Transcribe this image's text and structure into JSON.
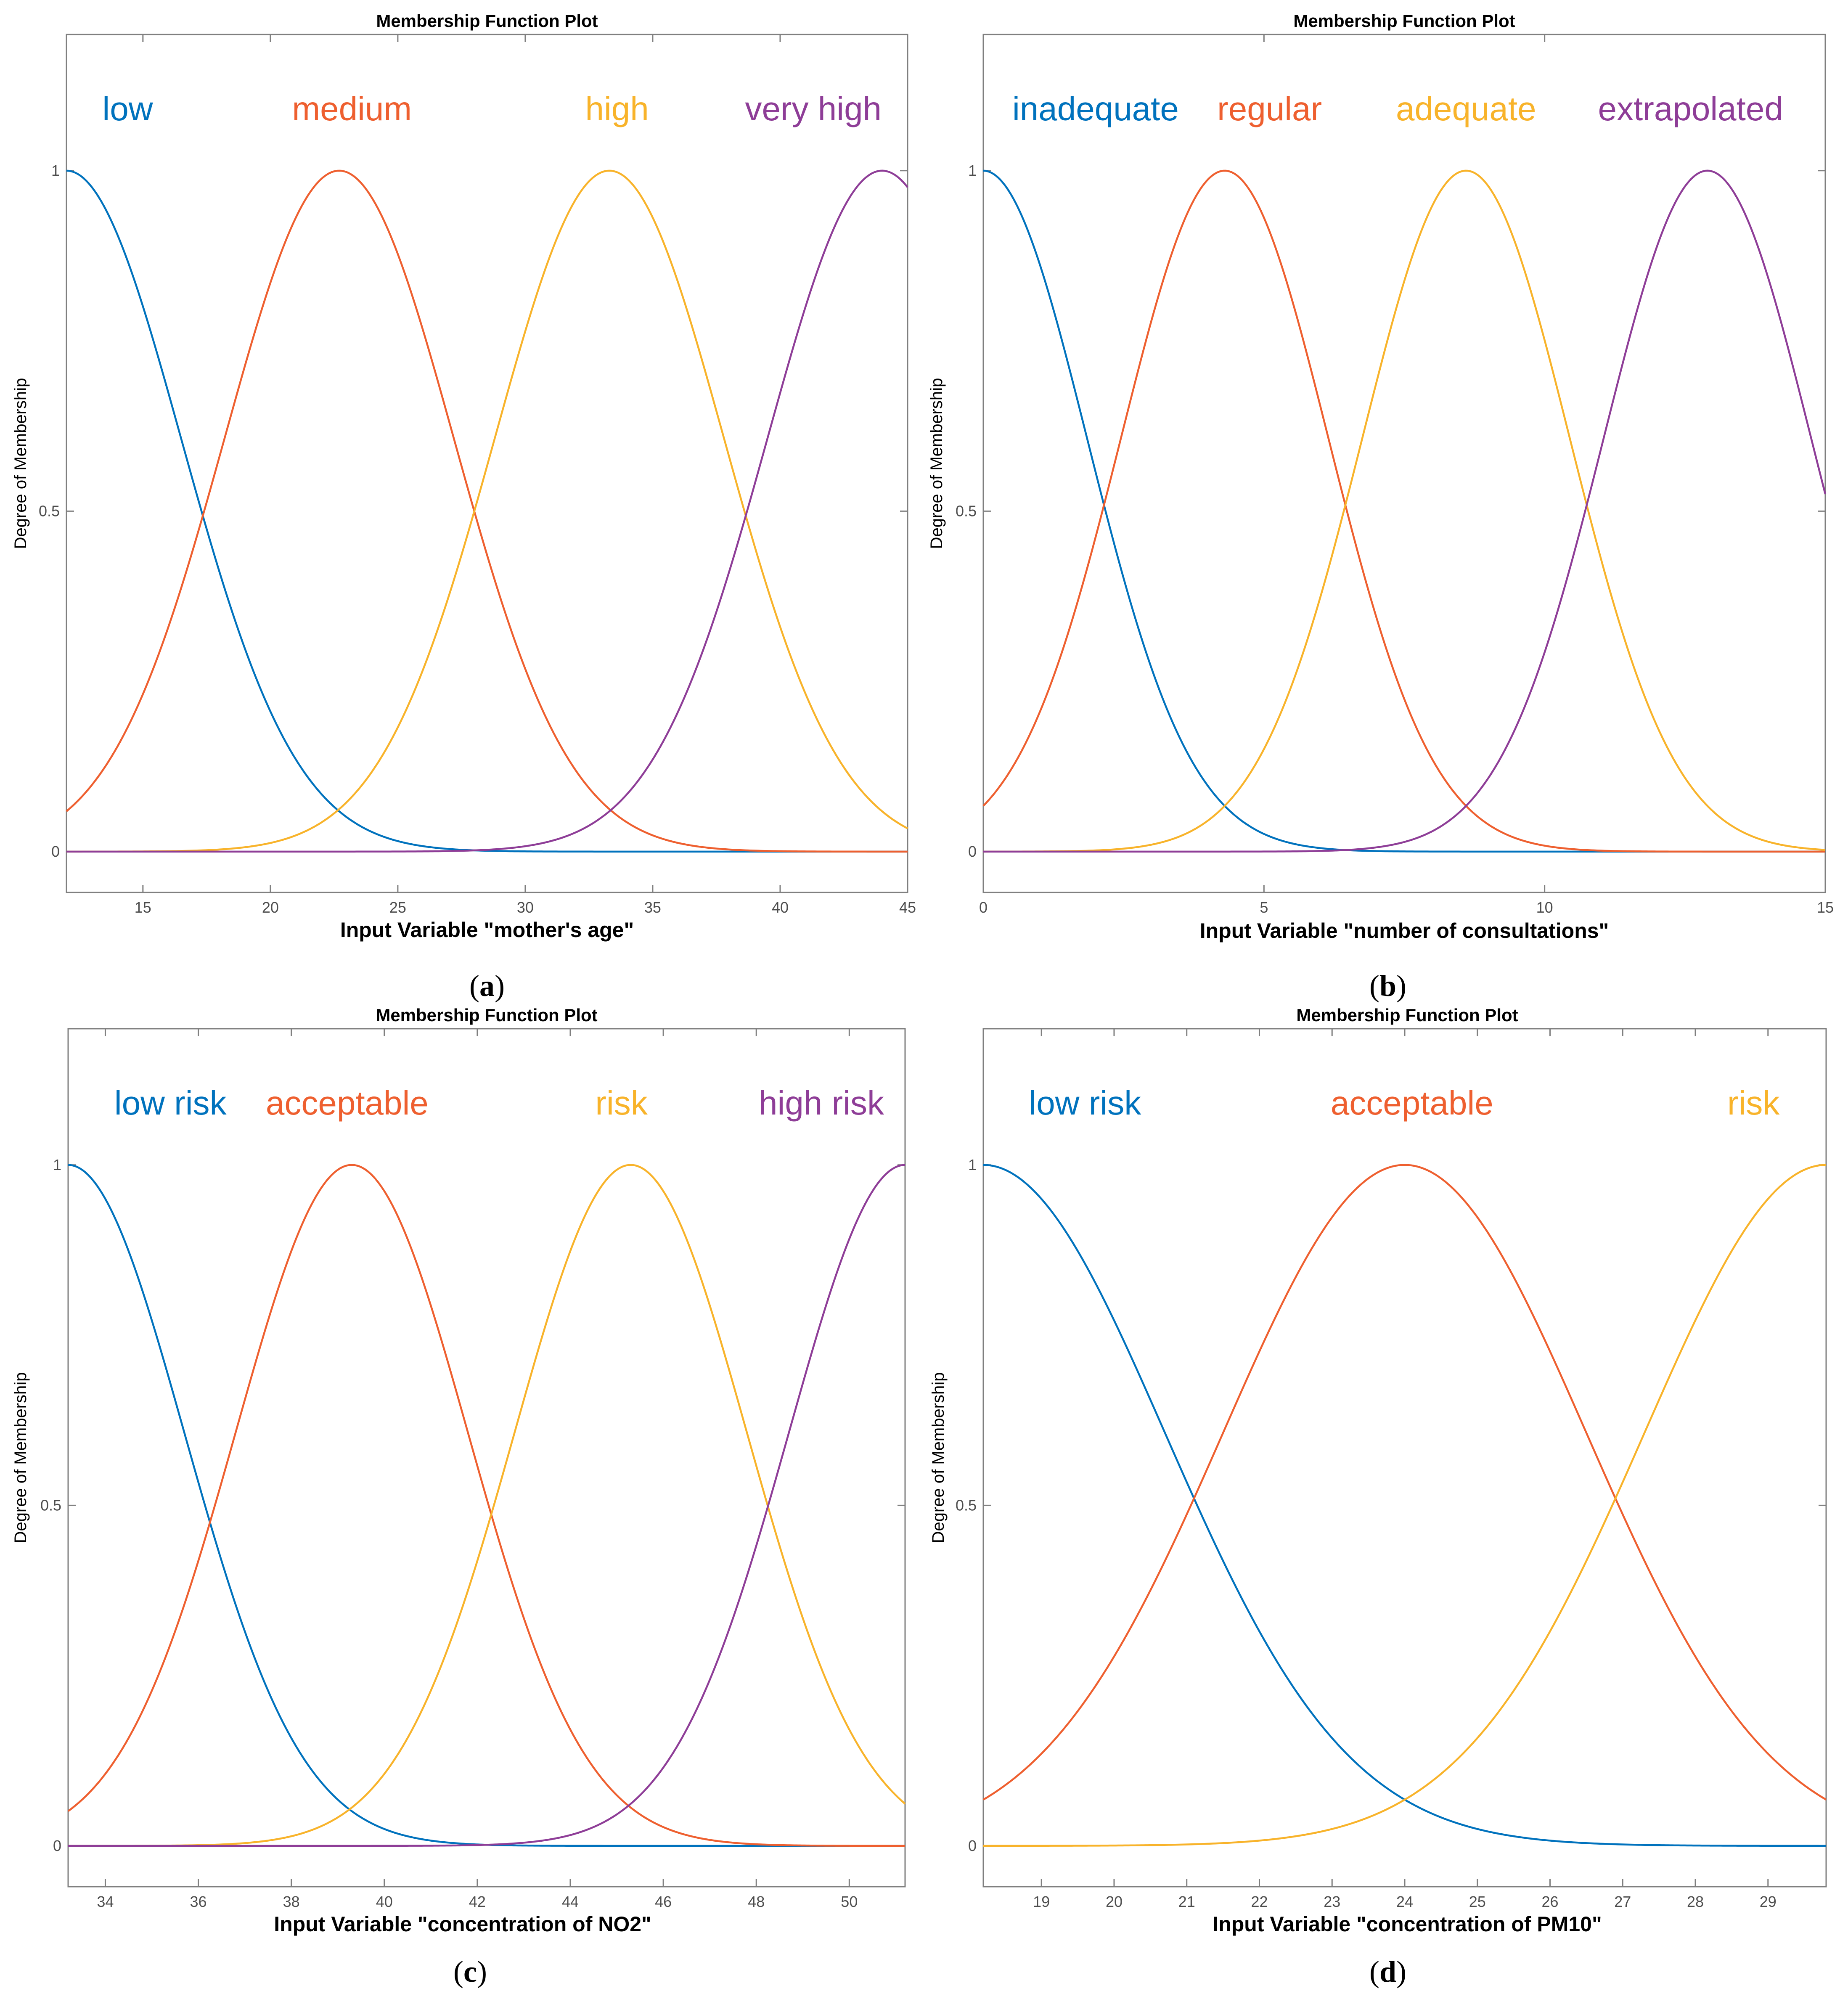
{
  "colors": {
    "blue": "#0072BD",
    "orange": "#EE5F2F",
    "yellow": "#F8B32A",
    "purple": "#8E3D97",
    "axis": "#7f7f7f"
  },
  "chart_data": [
    {
      "type": "line",
      "panel": "a",
      "title": "Membership Function Plot",
      "xlabel": "Input Variable  \"mother's age\"",
      "ylabel": "Degree of Membership",
      "xlim": [
        12,
        45
      ],
      "ylim": [
        -0.06,
        1.2
      ],
      "xticks": [
        15,
        20,
        25,
        30,
        35,
        40,
        45
      ],
      "yticks": [
        0,
        0.5,
        1
      ],
      "ytick_labels": [
        "0",
        "0.5",
        "1"
      ],
      "series": [
        {
          "name": "low",
          "function": "gaussmf",
          "sigma": 4.5,
          "center": 12,
          "color": "blue"
        },
        {
          "name": "medium",
          "function": "gaussmf",
          "sigma": 4.5,
          "center": 22.7,
          "color": "orange"
        },
        {
          "name": "high",
          "function": "gaussmf",
          "sigma": 4.5,
          "center": 33.3,
          "color": "yellow"
        },
        {
          "name": "very high",
          "function": "gaussmf",
          "sigma": 4.5,
          "center": 44,
          "color": "purple"
        }
      ],
      "label_x": [
        14.4,
        23.2,
        33.6,
        41.3
      ]
    },
    {
      "type": "line",
      "panel": "b",
      "title": "Membership Function Plot",
      "xlabel": "Input Variable  \"number of consultations\"",
      "ylabel": "Degree of Membership",
      "xlim": [
        0,
        15
      ],
      "ylim": [
        -0.06,
        1.2
      ],
      "xticks": [
        0,
        5,
        10,
        15
      ],
      "yticks": [
        0,
        0.5,
        1
      ],
      "ytick_labels": [
        "0",
        "0.5",
        "1"
      ],
      "series": [
        {
          "name": "inadequate",
          "function": "gaussmf",
          "sigma": 1.85,
          "center": 0,
          "color": "blue"
        },
        {
          "name": "regular",
          "function": "gaussmf",
          "sigma": 1.85,
          "center": 4.3,
          "color": "orange"
        },
        {
          "name": "adequate",
          "function": "gaussmf",
          "sigma": 1.85,
          "center": 8.6,
          "color": "yellow"
        },
        {
          "name": "extrapolated",
          "function": "gaussmf",
          "sigma": 1.85,
          "center": 12.9,
          "color": "purple"
        }
      ],
      "label_x": [
        2.0,
        5.1,
        8.6,
        12.6
      ]
    },
    {
      "type": "line",
      "panel": "c",
      "title": "Membership Function Plot",
      "xlabel": "Input Variable  \"concentration of NO2\"",
      "ylabel": "Degree of Membership",
      "xlim": [
        33.2,
        51.2
      ],
      "ylim": [
        -0.06,
        1.2
      ],
      "xticks": [
        34,
        36,
        38,
        40,
        42,
        44,
        46,
        48,
        50
      ],
      "yticks": [
        0,
        0.5,
        1
      ],
      "ytick_labels": [
        "0",
        "0.5",
        "1"
      ],
      "series": [
        {
          "name": "low risk",
          "function": "gaussmf",
          "sigma": 2.5,
          "center": 33.2,
          "color": "blue"
        },
        {
          "name": "acceptable",
          "function": "gaussmf",
          "sigma": 2.5,
          "center": 39.3,
          "color": "orange"
        },
        {
          "name": "risk",
          "function": "gaussmf",
          "sigma": 2.5,
          "center": 45.3,
          "color": "yellow"
        },
        {
          "name": "high risk",
          "function": "gaussmf",
          "sigma": 2.5,
          "center": 51.2,
          "color": "purple"
        }
      ],
      "label_x": [
        35.4,
        39.2,
        45.1,
        49.4
      ]
    },
    {
      "type": "line",
      "panel": "d",
      "title": "Membership Function Plot",
      "xlabel": "Input Variable  \"concentration of PM10\"",
      "ylabel": "Degree of Membership",
      "xlim": [
        18.2,
        29.8
      ],
      "ylim": [
        -0.06,
        1.2
      ],
      "xticks": [
        19,
        20,
        21,
        22,
        23,
        24,
        25,
        26,
        27,
        28,
        29
      ],
      "yticks": [
        0,
        0.5,
        1
      ],
      "ytick_labels": [
        "0",
        "0.5",
        "1"
      ],
      "series": [
        {
          "name": "low risk",
          "function": "gaussmf",
          "sigma": 2.5,
          "center": 18.2,
          "color": "blue"
        },
        {
          "name": "acceptable",
          "function": "gaussmf",
          "sigma": 2.5,
          "center": 24,
          "color": "orange"
        },
        {
          "name": "risk",
          "function": "gaussmf",
          "sigma": 2.5,
          "center": 29.8,
          "color": "yellow"
        }
      ],
      "label_x": [
        19.6,
        24.1,
        28.8
      ]
    }
  ],
  "panel_labels": [
    "a",
    "b",
    "c",
    "d"
  ]
}
